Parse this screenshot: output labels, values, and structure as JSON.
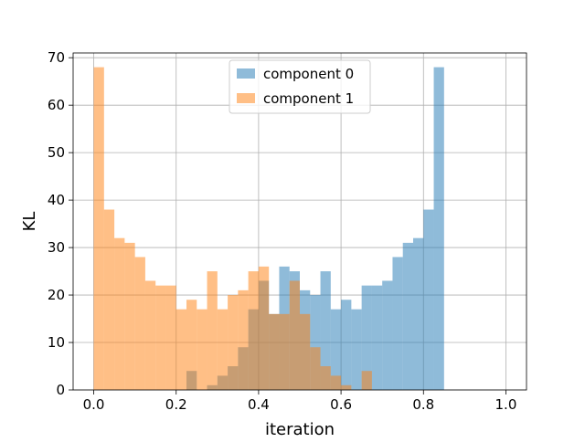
{
  "chart_data": {
    "type": "histogram",
    "title": "",
    "xlabel": "iteration",
    "ylabel": "KL",
    "xlim": [
      -0.05,
      1.05
    ],
    "ylim": [
      0,
      71
    ],
    "xticks": [
      "0.0",
      "0.2",
      "0.4",
      "0.6",
      "0.8",
      "1.0"
    ],
    "yticks": [
      "0",
      "10",
      "20",
      "30",
      "40",
      "50",
      "60",
      "70"
    ],
    "grid": true,
    "legend_position": "upper center",
    "bin_width": 0.025,
    "bin_start": 0.0,
    "series": [
      {
        "name": "component 0",
        "color": "#1f77b4",
        "alpha": 0.5,
        "values": [
          0,
          0,
          0,
          0,
          0,
          0,
          0,
          0,
          0,
          4,
          0,
          1,
          3,
          5,
          9,
          17,
          23,
          16,
          26,
          25,
          21,
          20,
          25,
          17,
          19,
          17,
          22,
          22,
          23,
          28,
          31,
          32,
          38,
          68,
          0,
          0,
          0,
          0,
          0,
          0
        ]
      },
      {
        "name": "component 1",
        "color": "#ff7f0e",
        "alpha": 0.5,
        "values": [
          68,
          38,
          32,
          31,
          28,
          23,
          22,
          22,
          17,
          19,
          17,
          25,
          17,
          20,
          21,
          25,
          26,
          16,
          16,
          23,
          16,
          9,
          5,
          3,
          1,
          0,
          4,
          0,
          0,
          0,
          0,
          0,
          0,
          0,
          0,
          0,
          0,
          0,
          0,
          0
        ]
      }
    ]
  }
}
